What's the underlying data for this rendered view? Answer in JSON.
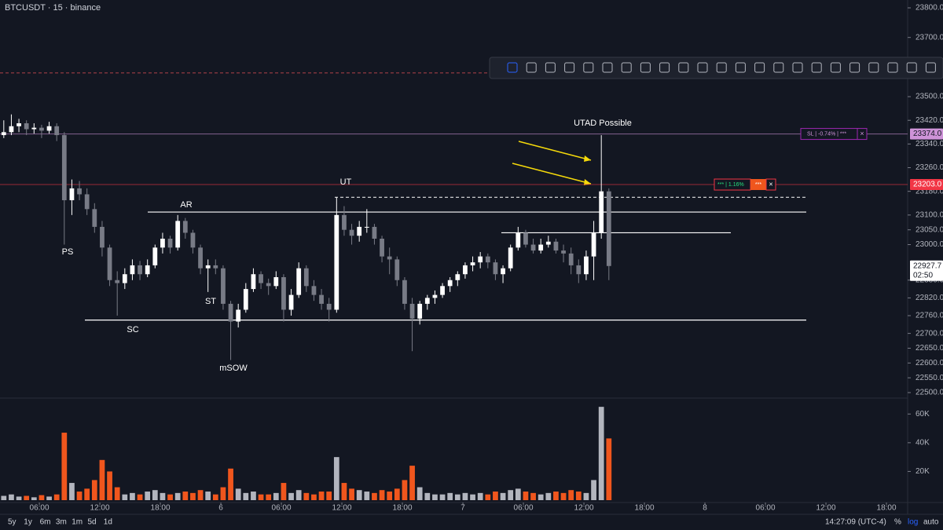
{
  "header": {
    "symbol": "BTCUSDT · 15 · binance"
  },
  "chart_data": {
    "type": "candlestick",
    "candles": [
      [
        23370,
        23420,
        23360,
        23380
      ],
      [
        23380,
        23440,
        23370,
        23400
      ],
      [
        23400,
        23425,
        23380,
        23410
      ],
      [
        23410,
        23420,
        23370,
        23390
      ],
      [
        23390,
        23410,
        23375,
        23395
      ],
      [
        23395,
        23405,
        23360,
        23385
      ],
      [
        23385,
        23415,
        23375,
        23400
      ],
      [
        23400,
        23410,
        23350,
        23370
      ],
      [
        23370,
        23380,
        23000,
        23150
      ],
      [
        23150,
        23220,
        23100,
        23190
      ],
      [
        23190,
        23215,
        23150,
        23170
      ],
      [
        23170,
        23190,
        23100,
        23120
      ],
      [
        23120,
        23140,
        23040,
        23060
      ],
      [
        23060,
        23080,
        22960,
        22990
      ],
      [
        22990,
        23000,
        22860,
        22880
      ],
      [
        22880,
        22910,
        22760,
        22870
      ],
      [
        22870,
        22920,
        22850,
        22900
      ],
      [
        22900,
        22950,
        22880,
        22930
      ],
      [
        22930,
        22945,
        22880,
        22900
      ],
      [
        22900,
        22950,
        22890,
        22930
      ],
      [
        22930,
        23000,
        22920,
        22990
      ],
      [
        22990,
        23040,
        22970,
        23020
      ],
      [
        23020,
        23030,
        22970,
        22990
      ],
      [
        22990,
        23100,
        22980,
        23080
      ],
      [
        23080,
        23090,
        23020,
        23040
      ],
      [
        23040,
        23050,
        22970,
        22990
      ],
      [
        22990,
        23000,
        22900,
        22920
      ],
      [
        22920,
        22950,
        22840,
        22930
      ],
      [
        22930,
        22950,
        22900,
        22920
      ],
      [
        22920,
        22930,
        22780,
        22800
      ],
      [
        22800,
        22810,
        22610,
        22740
      ],
      [
        22740,
        22800,
        22720,
        22780
      ],
      [
        22780,
        22870,
        22770,
        22850
      ],
      [
        22850,
        22920,
        22840,
        22900
      ],
      [
        22900,
        22910,
        22850,
        22870
      ],
      [
        22870,
        22885,
        22830,
        22860
      ],
      [
        22860,
        22910,
        22850,
        22890
      ],
      [
        22890,
        22900,
        22740,
        22780
      ],
      [
        22780,
        22850,
        22760,
        22830
      ],
      [
        22830,
        22940,
        22820,
        22920
      ],
      [
        22920,
        22930,
        22840,
        22860
      ],
      [
        22860,
        22880,
        22810,
        22830
      ],
      [
        22830,
        22850,
        22780,
        22800
      ],
      [
        22800,
        22820,
        22740,
        22780
      ],
      [
        22780,
        23160,
        22770,
        23100
      ],
      [
        23100,
        23130,
        23030,
        23050
      ],
      [
        23050,
        23070,
        23000,
        23030
      ],
      [
        23030,
        23080,
        23010,
        23060
      ],
      [
        23060,
        23120,
        23040,
        23060
      ],
      [
        23060,
        23070,
        23000,
        23020
      ],
      [
        23020,
        23030,
        22940,
        22960
      ],
      [
        22960,
        22990,
        22900,
        22950
      ],
      [
        22950,
        22960,
        22860,
        22880
      ],
      [
        22880,
        22890,
        22780,
        22800
      ],
      [
        22800,
        22820,
        22640,
        22750
      ],
      [
        22750,
        22810,
        22730,
        22800
      ],
      [
        22800,
        22830,
        22780,
        22820
      ],
      [
        22820,
        22845,
        22800,
        22830
      ],
      [
        22830,
        22870,
        22820,
        22860
      ],
      [
        22860,
        22890,
        22840,
        22880
      ],
      [
        22880,
        22910,
        22860,
        22900
      ],
      [
        22900,
        22940,
        22885,
        22930
      ],
      [
        22930,
        22960,
        22910,
        22940
      ],
      [
        22940,
        22975,
        22920,
        22960
      ],
      [
        22960,
        22970,
        22920,
        22940
      ],
      [
        22940,
        22950,
        22880,
        22900
      ],
      [
        22900,
        22930,
        22870,
        22920
      ],
      [
        22920,
        23000,
        22910,
        22990
      ],
      [
        22990,
        23060,
        22980,
        23040
      ],
      [
        23040,
        23050,
        22990,
        23000
      ],
      [
        23000,
        23020,
        22970,
        22980
      ],
      [
        22980,
        23020,
        22970,
        23000
      ],
      [
        23000,
        23030,
        22990,
        23010
      ],
      [
        23010,
        23020,
        22970,
        22980
      ],
      [
        22980,
        23000,
        22940,
        22970
      ],
      [
        22970,
        22990,
        22900,
        22930
      ],
      [
        22930,
        22950,
        22870,
        22900
      ],
      [
        22900,
        22980,
        22880,
        22960
      ],
      [
        22960,
        23080,
        22880,
        23040
      ],
      [
        23040,
        23370,
        23020,
        23180
      ],
      [
        23180,
        23190,
        22880,
        22927.7
      ]
    ],
    "volumes": [
      3000,
      4000,
      2500,
      3000,
      2000,
      3500,
      2500,
      4000,
      47000,
      12000,
      6000,
      8000,
      14000,
      28000,
      20000,
      9000,
      4000,
      5000,
      4000,
      6000,
      7000,
      5000,
      4000,
      5000,
      6000,
      5000,
      7000,
      6000,
      4000,
      9000,
      22000,
      8000,
      5000,
      6000,
      4000,
      4000,
      5000,
      12000,
      5000,
      7000,
      5000,
      4000,
      6000,
      6000,
      30000,
      12000,
      8000,
      7000,
      6000,
      5000,
      7000,
      6000,
      8000,
      14000,
      24000,
      9000,
      5000,
      4000,
      4000,
      5000,
      4000,
      5000,
      4000,
      5000,
      4000,
      6000,
      5000,
      7000,
      8000,
      6000,
      5000,
      4000,
      5000,
      6000,
      5000,
      7000,
      6000,
      5000,
      14000,
      65000,
      43000
    ],
    "up_color": "#ffffff",
    "down_color": "#787b86",
    "volume_up_color": "#b2b5be",
    "volume_down_color": "#f0561d",
    "xlim": [
      0,
      120
    ],
    "xticks": [
      {
        "value": 5.2,
        "label": "06:00"
      },
      {
        "value": 13.2,
        "label": "12:00"
      },
      {
        "value": 21.2,
        "label": "18:00"
      },
      {
        "value": 29.2,
        "label": "6"
      },
      {
        "value": 37.2,
        "label": "06:00"
      },
      {
        "value": 45.2,
        "label": "12:00"
      },
      {
        "value": 53.2,
        "label": "18:00"
      },
      {
        "value": 61.2,
        "label": "7"
      },
      {
        "value": 69.2,
        "label": "06:00"
      },
      {
        "value": 77.2,
        "label": "12:00"
      },
      {
        "value": 85.2,
        "label": "18:00"
      },
      {
        "value": 93.2,
        "label": "8"
      },
      {
        "value": 101.2,
        "label": "06:00"
      },
      {
        "value": 109.2,
        "label": "12:00"
      },
      {
        "value": 117.2,
        "label": "18:00"
      }
    ],
    "ylim": [
      22500,
      23800
    ],
    "yticks": [
      {
        "value": 23800,
        "label": "23800.0"
      },
      {
        "value": 23700,
        "label": "23700.0"
      },
      {
        "value": 23500,
        "label": "23500.0"
      },
      {
        "value": 23420,
        "label": "23420.0"
      },
      {
        "value": 23340,
        "label": "23340.0"
      },
      {
        "value": 23260,
        "label": "23260.0"
      },
      {
        "value": 23180,
        "label": "23180.0"
      },
      {
        "value": 23100,
        "label": "23100.0"
      },
      {
        "value": 23050,
        "label": "23050.0"
      },
      {
        "value": 23000,
        "label": "23000.0"
      },
      {
        "value": 22880,
        "label": "22880.0"
      },
      {
        "value": 22820,
        "label": "22820.0"
      },
      {
        "value": 22760,
        "label": "22760.0"
      },
      {
        "value": 22700,
        "label": "22700.0"
      },
      {
        "value": 22650,
        "label": "22650.0"
      },
      {
        "value": 22600,
        "label": "22600.0"
      },
      {
        "value": 22550,
        "label": "22550.0"
      },
      {
        "value": 22500,
        "label": "22500.0"
      }
    ],
    "vlim": [
      0,
      70000
    ],
    "vticks": [
      {
        "value": 60000,
        "label": "60K"
      },
      {
        "value": 40000,
        "label": "40K"
      },
      {
        "value": 20000,
        "label": "20K"
      }
    ],
    "annotations": [
      "PS",
      "SC",
      "AR",
      "ST",
      "mSOW",
      "UT",
      "UTAD Possible"
    ],
    "levels": [
      23110,
      22745,
      23160,
      23040
    ],
    "dashed_line": 23580,
    "price_lines": [
      {
        "value": 23374,
        "label": "23374.0",
        "color": "#ce93d8"
      },
      {
        "value": 23203,
        "label": "23203.0",
        "color": "#f23645"
      },
      {
        "value": 22927.7,
        "label": "22927.7",
        "countdown": "02:50"
      }
    ],
    "positions": {
      "stop": "SL | -0.74% | ***",
      "target": "*** | 1.16%",
      "target_qty": "***"
    }
  },
  "footer": {
    "ranges": [
      "5y",
      "1y",
      "6m",
      "3m",
      "1m",
      "5d",
      "1d"
    ],
    "clock": "14:27:09 (UTC-4)",
    "percent": "%",
    "log": "log",
    "auto": "auto"
  }
}
